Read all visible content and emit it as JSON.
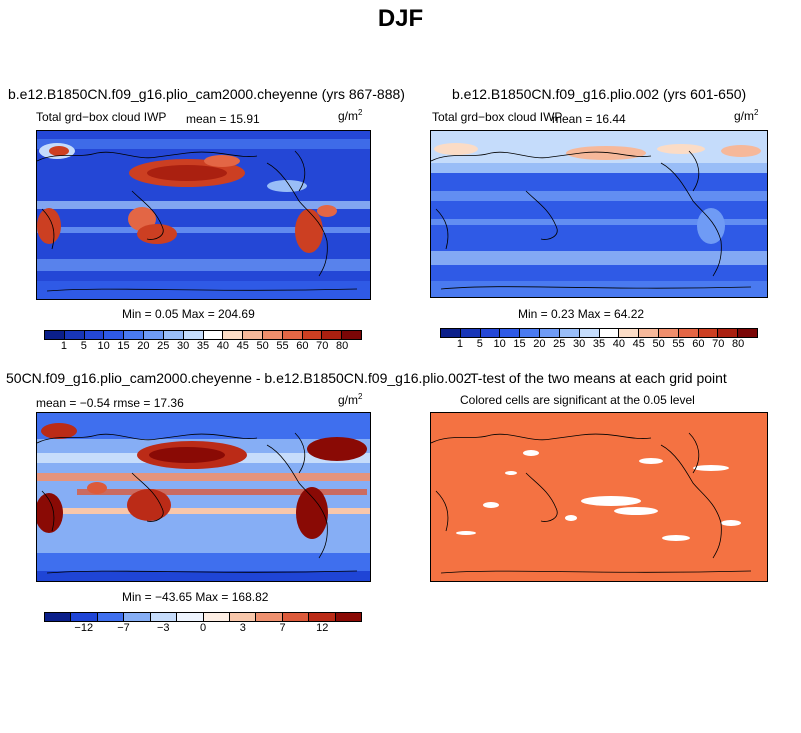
{
  "title": "DJF",
  "units": {
    "base": "g/m",
    "exp": "2"
  },
  "colors": {
    "blue_deep": "#1f45d6",
    "red_dark": "#a01006",
    "ttest_orange": "#f47242"
  },
  "panels": [
    {
      "id": "case1",
      "title": "b.e12.B1850CN.f09_g16.plio_cam2000.cheyenne (yrs 867-888)",
      "left_label": "Total grd−box cloud IWP",
      "mean_label": "mean =  15.91",
      "minmax": "Min =    0.05 Max = 204.69",
      "colorbar": {
        "labels": [
          "1",
          "5",
          "10",
          "15",
          "20",
          "25",
          "30",
          "35",
          "40",
          "45",
          "50",
          "55",
          "60",
          "70",
          "80"
        ],
        "colors": [
          "#0b1f8a",
          "#1836b8",
          "#2447d6",
          "#2f5ae6",
          "#4a7af0",
          "#6f9bf5",
          "#99bdf7",
          "#c5dcfb",
          "#ffffff",
          "#fbdcc6",
          "#f6b89a",
          "#ef8e6c",
          "#e36645",
          "#cc3f22",
          "#aa2010",
          "#7a0606"
        ]
      }
    },
    {
      "id": "case2",
      "title": "b.e12.B1850CN.f09_g16.plio.002 (yrs 601-650)",
      "left_label": "Total grd−box cloud IWP",
      "mean_label": "mean =  16.44",
      "minmax": "Min =    0.23 Max =  64.22",
      "colorbar": {
        "labels": [
          "1",
          "5",
          "10",
          "15",
          "20",
          "25",
          "30",
          "35",
          "40",
          "45",
          "50",
          "55",
          "60",
          "70",
          "80"
        ],
        "colors": [
          "#0b1f8a",
          "#1836b8",
          "#2447d6",
          "#2f5ae6",
          "#4a7af0",
          "#6f9bf5",
          "#99bdf7",
          "#c5dcfb",
          "#ffffff",
          "#fbdcc6",
          "#f6b89a",
          "#ef8e6c",
          "#e36645",
          "#cc3f22",
          "#aa2010",
          "#7a0606"
        ]
      }
    },
    {
      "id": "diff",
      "title": "50CN.f09_g16.plio_cam2000.cheyenne - b.e12.B1850CN.f09_g16.plio.002",
      "left_label": "mean =  −0.54    rmse =  17.36",
      "minmax": "Min = −43.65 Max = 168.82",
      "colorbar": {
        "labels": [
          "−12",
          "−7",
          "−3",
          "0",
          "3",
          "7",
          "12"
        ],
        "colors": [
          "#0b1f8a",
          "#1f45d6",
          "#3f6fee",
          "#86aef5",
          "#c6dcfb",
          "#eef4fe",
          "#fdeee4",
          "#f8c7ab",
          "#ef9170",
          "#dc5a3b",
          "#bb2b17",
          "#8a0a05"
        ]
      }
    },
    {
      "id": "ttest",
      "title": "T-test of the two means at each grid point",
      "subtitle": "Colored cells are significant at the 0.05 level"
    }
  ]
}
